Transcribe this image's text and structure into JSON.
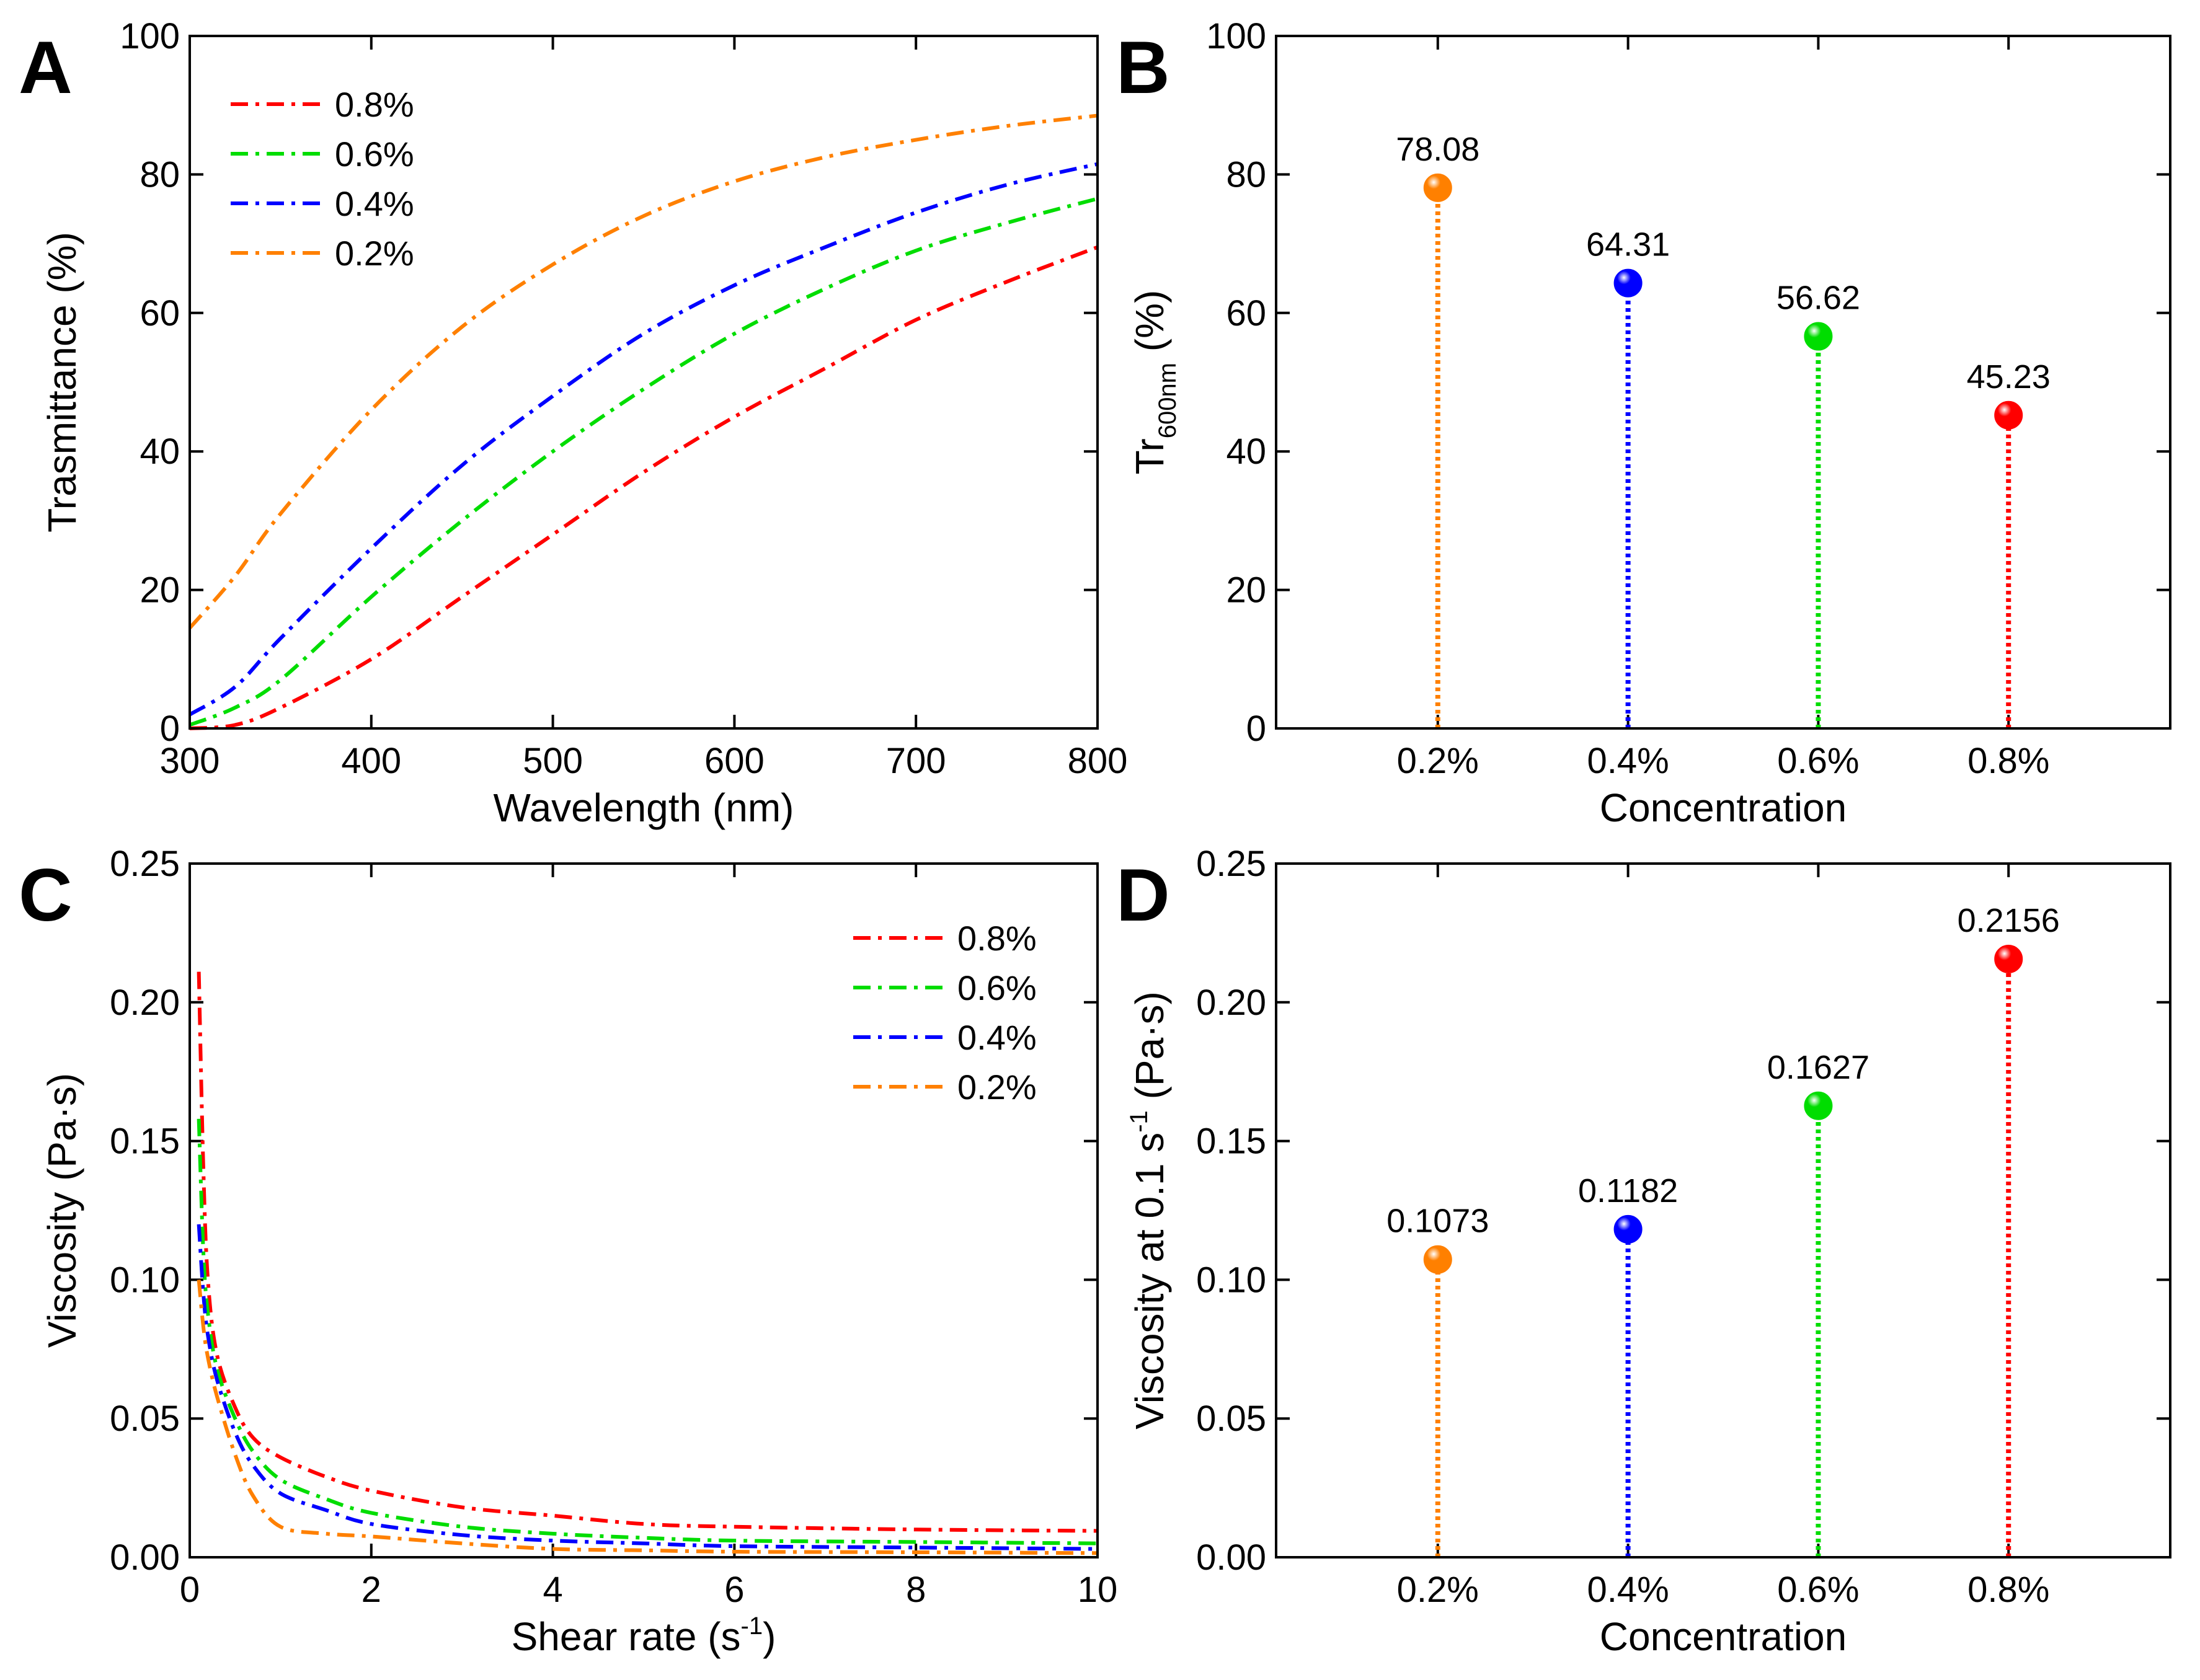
{
  "chart_data": [
    {
      "panel": "A",
      "type": "line",
      "xlabel": "Wavelength (nm)",
      "ylabel": "Trasmittance (%)",
      "xlim": [
        300,
        800
      ],
      "ylim": [
        0,
        100
      ],
      "xticks": [
        300,
        400,
        500,
        600,
        700,
        800
      ],
      "yticks": [
        0,
        20,
        40,
        60,
        80,
        100
      ],
      "legend_position": "top-left",
      "line_style": "dash-dot",
      "series": [
        {
          "name": "0.8%",
          "color": "#ff0000",
          "x": [
            300,
            325,
            350,
            400,
            450,
            500,
            550,
            600,
            650,
            700,
            750,
            800
          ],
          "values": [
            0,
            0.5,
            3,
            10,
            19,
            28,
            37,
            45,
            52,
            59,
            64.5,
            69.5
          ]
        },
        {
          "name": "0.6%",
          "color": "#00dd00",
          "x": [
            300,
            325,
            350,
            400,
            450,
            500,
            550,
            600,
            650,
            700,
            750,
            800
          ],
          "values": [
            0.5,
            3,
            7,
            19,
            30,
            40,
            49,
            57,
            63.5,
            69,
            73,
            76.5
          ]
        },
        {
          "name": "0.4%",
          "color": "#0000ff",
          "x": [
            300,
            325,
            350,
            400,
            450,
            500,
            550,
            600,
            650,
            700,
            750,
            800
          ],
          "values": [
            2,
            6,
            13,
            26,
            38,
            48,
            57,
            64,
            69.5,
            74.5,
            78.5,
            81.5
          ]
        },
        {
          "name": "0.2%",
          "color": "#ff8000",
          "x": [
            300,
            325,
            350,
            400,
            450,
            500,
            550,
            600,
            650,
            700,
            750,
            800
          ],
          "values": [
            14.5,
            22,
            31,
            46,
            58,
            67,
            74,
            79,
            82.5,
            85,
            87,
            88.5
          ]
        }
      ]
    },
    {
      "panel": "B",
      "type": "stem",
      "xlabel": "Concentration",
      "ylabel_main": "Tr",
      "ylabel_sub": "600nm",
      "ylabel_tail": " (%)",
      "ylim": [
        0,
        100
      ],
      "yticks": [
        0,
        20,
        40,
        60,
        80,
        100
      ],
      "categories": [
        "0.2%",
        "0.4%",
        "0.6%",
        "0.8%"
      ],
      "values": [
        78.08,
        64.31,
        56.62,
        45.23
      ],
      "labels": [
        "78.08",
        "64.31",
        "56.62",
        "45.23"
      ],
      "colors": [
        "#ff8000",
        "#0000ff",
        "#00dd00",
        "#ff0000"
      ]
    },
    {
      "panel": "C",
      "type": "line",
      "xlabel_main": "Shear rate (s",
      "xlabel_sup": "-1",
      "xlabel_tail": ")",
      "ylabel": "Viscosity (Pa·s)",
      "xlim": [
        0,
        10
      ],
      "ylim": [
        0,
        0.25
      ],
      "xticks": [
        0,
        2,
        4,
        6,
        8,
        10
      ],
      "yticks": [
        0.0,
        0.05,
        0.1,
        0.15,
        0.2,
        0.25
      ],
      "ytick_labels": [
        "0.00",
        "0.05",
        "0.10",
        "0.15",
        "0.20",
        "0.25"
      ],
      "legend_position": "top-right",
      "line_style": "dash-dot",
      "series": [
        {
          "name": "0.8%",
          "color": "#ff0000",
          "x": [
            0.1,
            0.15,
            0.2,
            0.3,
            0.5,
            0.7,
            1,
            1.5,
            2,
            3,
            4,
            5,
            6,
            8,
            10
          ],
          "values": [
            0.211,
            0.14,
            0.1,
            0.073,
            0.054,
            0.043,
            0.036,
            0.029,
            0.024,
            0.018,
            0.015,
            0.012,
            0.011,
            0.01,
            0.0095
          ]
        },
        {
          "name": "0.6%",
          "color": "#00dd00",
          "x": [
            0.1,
            0.15,
            0.2,
            0.3,
            0.5,
            0.7,
            1,
            1.5,
            2,
            3,
            4,
            5,
            6,
            8,
            10
          ],
          "values": [
            0.158,
            0.11,
            0.088,
            0.068,
            0.05,
            0.038,
            0.028,
            0.021,
            0.016,
            0.011,
            0.0085,
            0.007,
            0.006,
            0.0055,
            0.005
          ]
        },
        {
          "name": "0.4%",
          "color": "#0000ff",
          "x": [
            0.1,
            0.15,
            0.2,
            0.3,
            0.5,
            0.7,
            1,
            1.5,
            2,
            3,
            4,
            5,
            6,
            8,
            10
          ],
          "values": [
            0.12,
            0.095,
            0.08,
            0.064,
            0.045,
            0.033,
            0.023,
            0.017,
            0.012,
            0.008,
            0.006,
            0.005,
            0.004,
            0.0035,
            0.003
          ]
        },
        {
          "name": "0.2%",
          "color": "#ff8000",
          "x": [
            0.1,
            0.15,
            0.2,
            0.3,
            0.5,
            0.7,
            1,
            1.5,
            2,
            3,
            4,
            5,
            6,
            8,
            10
          ],
          "values": [
            0.1,
            0.083,
            0.072,
            0.058,
            0.037,
            0.022,
            0.011,
            0.0085,
            0.0075,
            0.005,
            0.003,
            0.0025,
            0.002,
            0.0018,
            0.0015
          ]
        }
      ]
    },
    {
      "panel": "D",
      "type": "stem",
      "xlabel": "Concentration",
      "ylabel_main": "Viscosity at 0.1 s",
      "ylabel_sup": "-1",
      "ylabel_tail": " (Pa·s)",
      "ylim": [
        0,
        0.25
      ],
      "yticks": [
        0.0,
        0.05,
        0.1,
        0.15,
        0.2,
        0.25
      ],
      "ytick_labels": [
        "0.00",
        "0.05",
        "0.10",
        "0.15",
        "0.20",
        "0.25"
      ],
      "categories": [
        "0.2%",
        "0.4%",
        "0.6%",
        "0.8%"
      ],
      "values": [
        0.1073,
        0.1182,
        0.1627,
        0.2156
      ],
      "labels": [
        "0.1073",
        "0.1182",
        "0.1627",
        "0.2156"
      ],
      "colors": [
        "#ff8000",
        "#0000ff",
        "#00dd00",
        "#ff0000"
      ]
    }
  ]
}
